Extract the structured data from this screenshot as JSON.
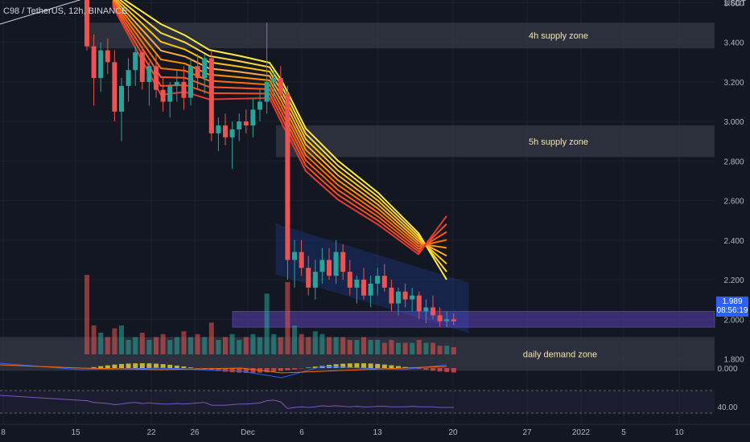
{
  "title": "C98 / TetherUS, 12h, BINANCE",
  "colors": {
    "background": "#131722",
    "up": "#26a69a",
    "down": "#ef5350",
    "zone_gray": "#363a45",
    "zone_purple": "#5b3fb5",
    "channel": "#2962ff",
    "rsi": "#7e57c2"
  },
  "chart_data": {
    "type": "candlestick",
    "x_axis_labels": [
      "8",
      "15",
      "22",
      "26",
      "Dec",
      "6",
      "13",
      "20",
      "27",
      "2022",
      "5",
      "10"
    ],
    "y_axis_labels": [
      "3.600",
      "3.400",
      "3.200",
      "3.000",
      "2.800",
      "2.600",
      "2.400",
      "2.200",
      "2.000",
      "1.800"
    ],
    "y_unit": "USDT",
    "ylim": [
      1.74,
      3.6
    ],
    "current_price": "1.989",
    "countdown": "08:56:19",
    "zones": [
      {
        "label": "4h supply zone",
        "low": 3.37,
        "high": 3.5
      },
      {
        "label": "5h supply zone",
        "low": 2.82,
        "high": 2.98
      },
      {
        "label": "daily demand zone",
        "low": 1.74,
        "high": 1.91
      }
    ],
    "purple_zone": {
      "low": 1.96,
      "high": 2.04
    },
    "candles": [
      [
        3.62,
        3.66,
        3.36,
        3.38
      ],
      [
        3.38,
        3.44,
        3.08,
        3.22
      ],
      [
        3.22,
        3.4,
        3.15,
        3.36
      ],
      [
        3.36,
        3.42,
        3.24,
        3.3
      ],
      [
        3.3,
        3.36,
        3.0,
        3.05
      ],
      [
        3.05,
        3.22,
        2.9,
        3.18
      ],
      [
        3.18,
        3.32,
        3.1,
        3.26
      ],
      [
        3.26,
        3.38,
        3.18,
        3.35
      ],
      [
        3.35,
        3.38,
        3.16,
        3.2
      ],
      [
        3.2,
        3.3,
        3.08,
        3.28
      ],
      [
        3.28,
        3.34,
        3.12,
        3.16
      ],
      [
        3.16,
        3.22,
        3.05,
        3.1
      ],
      [
        3.1,
        3.2,
        3.02,
        3.18
      ],
      [
        3.18,
        3.26,
        3.1,
        3.2
      ],
      [
        3.2,
        3.28,
        3.06,
        3.12
      ],
      [
        3.12,
        3.32,
        3.08,
        3.28
      ],
      [
        3.28,
        3.34,
        3.16,
        3.22
      ],
      [
        3.22,
        3.34,
        3.14,
        3.32
      ],
      [
        3.32,
        3.36,
        2.9,
        2.94
      ],
      [
        2.94,
        3.02,
        2.85,
        2.98
      ],
      [
        2.98,
        3.04,
        2.88,
        2.92
      ],
      [
        2.92,
        3.0,
        2.76,
        2.96
      ],
      [
        2.96,
        3.04,
        2.9,
        3.0
      ],
      [
        3.0,
        3.06,
        2.94,
        2.98
      ],
      [
        2.98,
        3.12,
        2.92,
        3.06
      ],
      [
        3.06,
        3.16,
        3.0,
        3.1
      ],
      [
        3.1,
        3.5,
        3.04,
        3.2
      ],
      [
        3.2,
        3.26,
        3.12,
        3.22
      ],
      [
        3.22,
        3.28,
        3.12,
        3.14
      ],
      [
        3.14,
        3.18,
        2.2,
        2.3
      ],
      [
        2.3,
        2.4,
        2.16,
        2.34
      ],
      [
        2.34,
        2.4,
        2.22,
        2.26
      ],
      [
        2.26,
        2.32,
        2.12,
        2.16
      ],
      [
        2.16,
        2.3,
        2.1,
        2.24
      ],
      [
        2.24,
        2.36,
        2.18,
        2.3
      ],
      [
        2.3,
        2.36,
        2.2,
        2.22
      ],
      [
        2.22,
        2.4,
        2.18,
        2.34
      ],
      [
        2.34,
        2.38,
        2.2,
        2.24
      ],
      [
        2.24,
        2.3,
        2.12,
        2.16
      ],
      [
        2.16,
        2.22,
        2.08,
        2.2
      ],
      [
        2.2,
        2.26,
        2.1,
        2.12
      ],
      [
        2.12,
        2.22,
        2.06,
        2.18
      ],
      [
        2.18,
        2.26,
        2.12,
        2.22
      ],
      [
        2.22,
        2.28,
        2.14,
        2.16
      ],
      [
        2.16,
        2.2,
        2.04,
        2.08
      ],
      [
        2.08,
        2.16,
        2.02,
        2.14
      ],
      [
        2.14,
        2.18,
        2.06,
        2.1
      ],
      [
        2.1,
        2.16,
        2.04,
        2.12
      ],
      [
        2.12,
        2.14,
        2.0,
        2.04
      ],
      [
        2.04,
        2.1,
        1.98,
        2.06
      ],
      [
        2.06,
        2.12,
        2.0,
        2.02
      ],
      [
        2.02,
        2.06,
        1.96,
        1.99
      ],
      [
        1.99,
        2.04,
        1.96,
        2.0
      ],
      [
        2.0,
        2.03,
        1.97,
        1.989
      ]
    ],
    "volume": [
      0.55,
      0.2,
      0.15,
      0.12,
      0.18,
      0.2,
      0.1,
      0.12,
      0.15,
      0.1,
      0.12,
      0.14,
      0.1,
      0.12,
      0.16,
      0.12,
      0.14,
      0.12,
      0.22,
      0.1,
      0.12,
      0.14,
      0.1,
      0.12,
      0.14,
      0.12,
      0.42,
      0.14,
      0.12,
      0.5,
      0.2,
      0.14,
      0.12,
      0.16,
      0.14,
      0.12,
      0.12,
      0.12,
      0.1,
      0.1,
      0.12,
      0.1,
      0.1,
      0.08,
      0.1,
      0.08,
      0.08,
      0.08,
      0.1,
      0.08,
      0.08,
      0.06,
      0.06,
      0.05
    ],
    "rsi": {
      "label": "40.00",
      "values": [
        52,
        49,
        48,
        47,
        45,
        46,
        48,
        49,
        47,
        48,
        47,
        46,
        46,
        47,
        46,
        47,
        48,
        49,
        44,
        44,
        44,
        45,
        46,
        46,
        47,
        48,
        52,
        53,
        50,
        38,
        40,
        41,
        40,
        41,
        43,
        42,
        43,
        42,
        41,
        42,
        41,
        41,
        42,
        42,
        41,
        41,
        41,
        42,
        41,
        41,
        41,
        40,
        40,
        40
      ]
    },
    "macd": {
      "label": "0.000"
    }
  }
}
